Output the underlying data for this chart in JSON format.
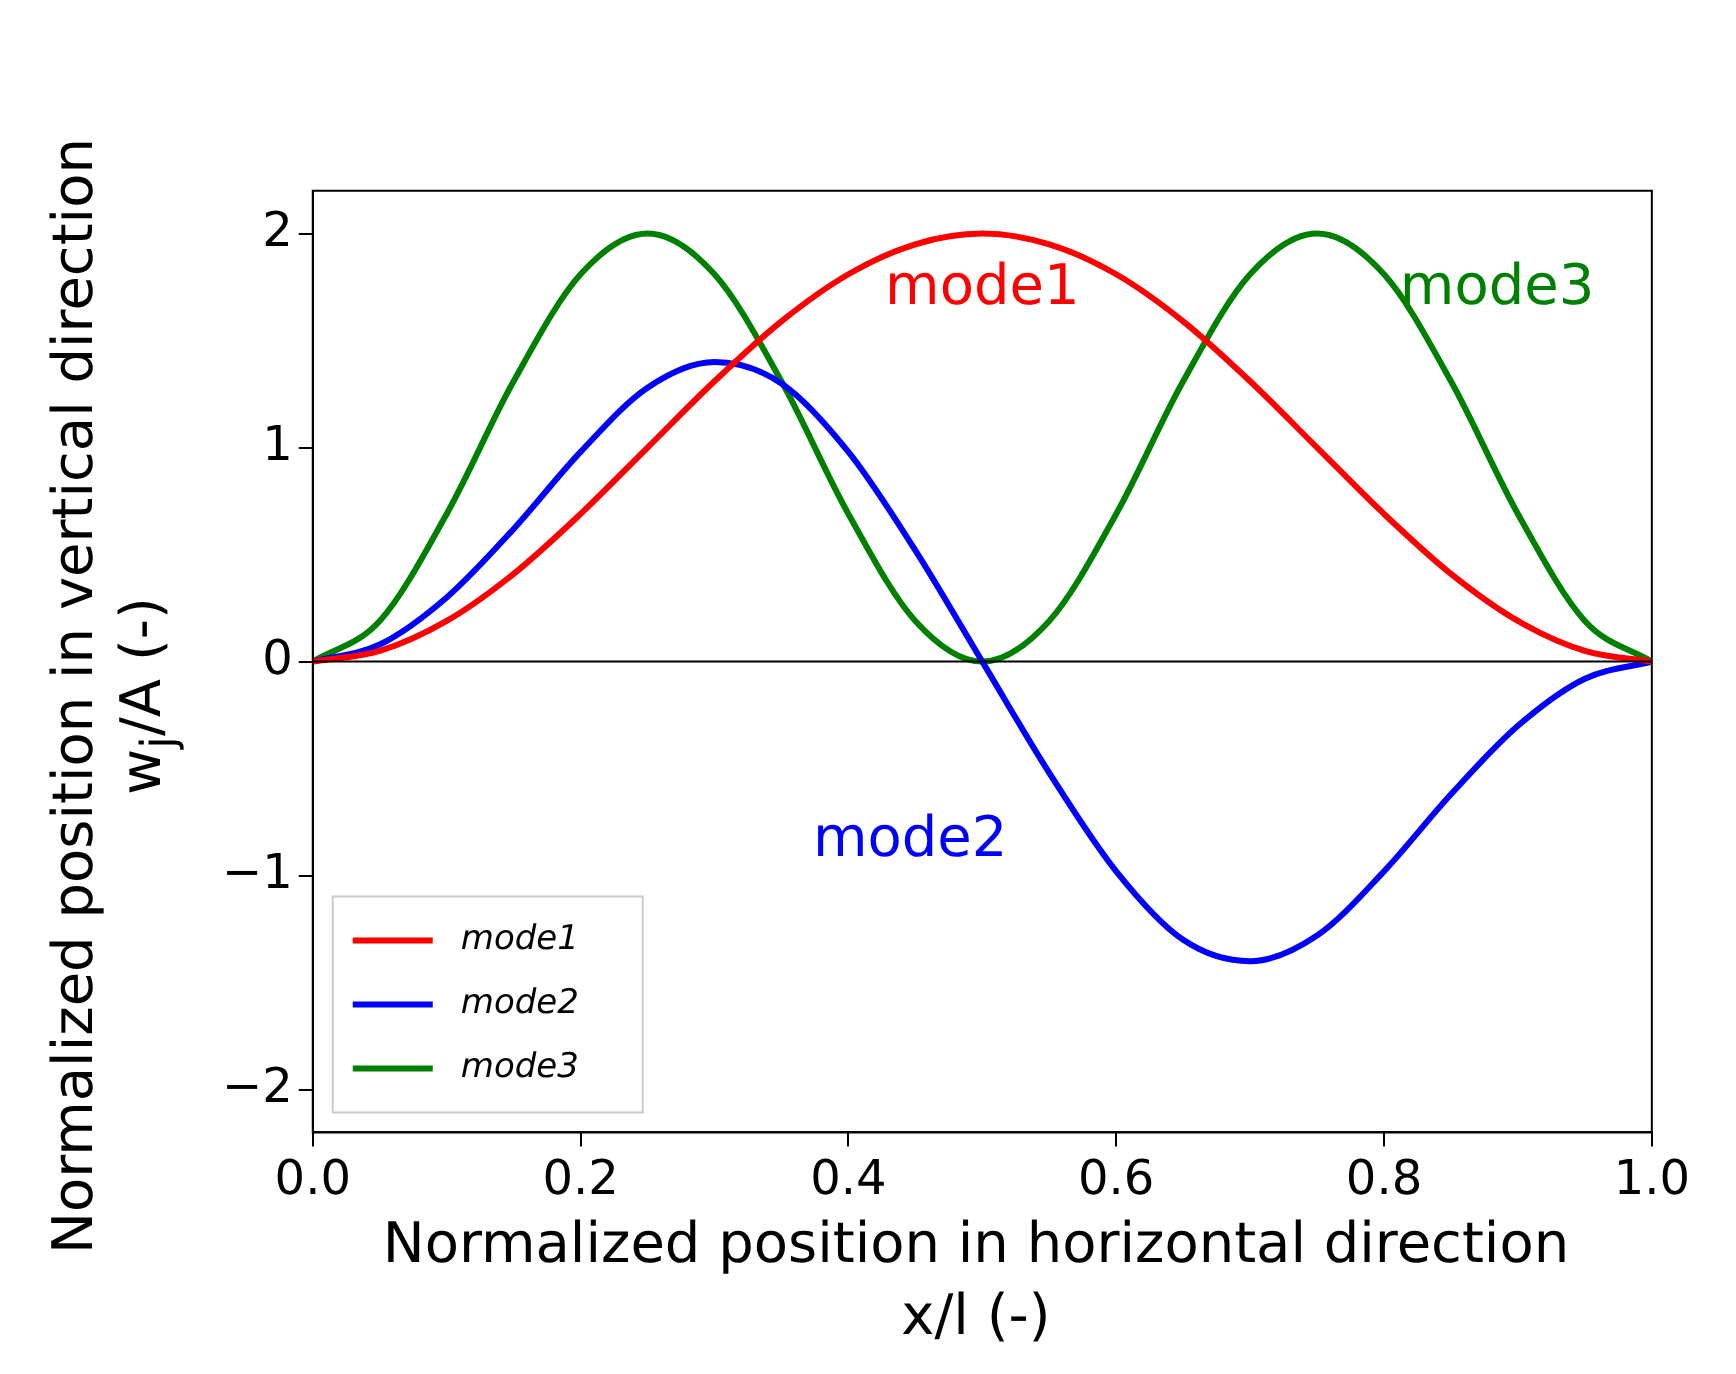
{
  "chart_data": {
    "type": "line",
    "xlabel": "Normalized position in horizontal direction\nx/l (-)",
    "ylabel": "Normalized position in vertical direction\nw$_{j}$/A (-)",
    "x": [
      0,
      0.05,
      0.1,
      0.15,
      0.2,
      0.25,
      0.3,
      0.35,
      0.4,
      0.45,
      0.5,
      0.55,
      0.6,
      0.65,
      0.7,
      0.75,
      0.8,
      0.85,
      0.9,
      0.95,
      1
    ],
    "series": [
      {
        "name": "mode1",
        "color": "#ff0000",
        "values": [
          0,
          0.05,
          0.19,
          0.41,
          0.69,
          1,
          1.31,
          1.59,
          1.81,
          1.95,
          2,
          1.95,
          1.81,
          1.59,
          1.31,
          1,
          0.69,
          0.41,
          0.19,
          0.05,
          0
        ]
      },
      {
        "name": "mode2",
        "color": "#0000ff",
        "values": [
          0,
          0.08,
          0.3,
          0.62,
          0.98,
          1.28,
          1.4,
          1.3,
          0.98,
          0.52,
          0,
          -0.52,
          -0.98,
          -1.3,
          -1.4,
          -1.28,
          -0.98,
          -0.62,
          -0.3,
          -0.08,
          0
        ]
      },
      {
        "name": "mode3",
        "color": "#008000",
        "values": [
          0,
          0.19,
          0.69,
          1.31,
          1.81,
          2,
          1.81,
          1.31,
          0.69,
          0.19,
          0,
          0.19,
          0.69,
          1.31,
          1.81,
          2,
          1.81,
          1.31,
          0.69,
          0.19,
          0
        ]
      }
    ],
    "ref_lines": [
      {
        "axis": "y",
        "value": 0,
        "color": "#000000"
      }
    ],
    "xlim": [
      0,
      1
    ],
    "ylim": [
      -2.2,
      2.2
    ],
    "xticks": [
      {
        "value": 0,
        "label": "0.0"
      },
      {
        "value": 0.2,
        "label": "0.2"
      },
      {
        "value": 0.4,
        "label": "0.4"
      },
      {
        "value": 0.6,
        "label": "0.6"
      },
      {
        "value": 0.8,
        "label": "0.8"
      },
      {
        "value": 1,
        "label": "1.0"
      }
    ],
    "yticks": [
      {
        "value": -2,
        "label": "−2"
      },
      {
        "value": -1,
        "label": "−1"
      },
      0,
      1,
      2
    ],
    "legend": "bottom left",
    "marker": "none",
    "line_style": "solid",
    "grid": false
  }
}
